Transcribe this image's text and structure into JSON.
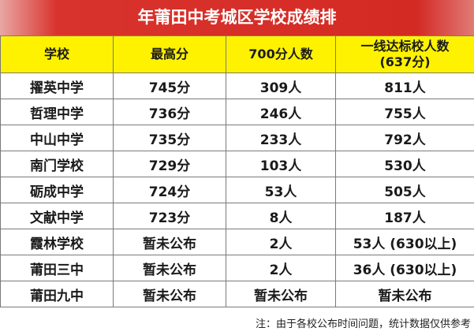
{
  "title": "年莆田中考城区学校成绩排",
  "table": {
    "header": [
      "学校",
      "最高分",
      "700分人数",
      [
        "一线达标校人数",
        "(637分)"
      ]
    ],
    "rows": [
      [
        "擢英中学",
        "745分",
        "309人",
        "811人"
      ],
      [
        "哲理中学",
        "736分",
        "246人",
        "755人"
      ],
      [
        "中山中学",
        "735分",
        "233人",
        "792人"
      ],
      [
        "南门学校",
        "729分",
        "103人",
        "530人"
      ],
      [
        "砺成中学",
        "724分",
        "53人",
        "505人"
      ],
      [
        "文献中学",
        "723分",
        "8人",
        "187人"
      ],
      [
        "霞林学校",
        "暂未公布",
        "2人",
        "53人 (630以上)"
      ],
      [
        "莆田三中",
        "暂未公布",
        "2人",
        "36人 (630以上)"
      ],
      [
        "莆田九中",
        "暂未公布",
        "暂未公布",
        "暂未公布"
      ]
    ]
  },
  "note": "注：由于各校公布时间问题，统计数据仅供参考"
}
